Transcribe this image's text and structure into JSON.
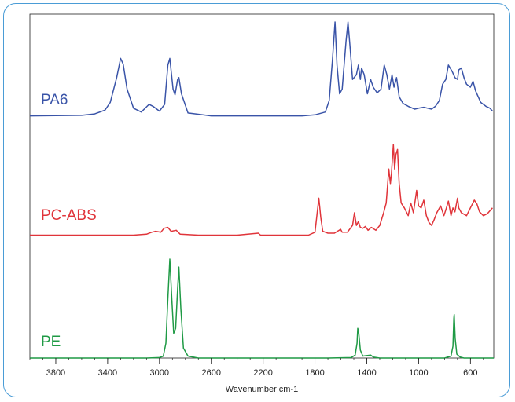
{
  "chart_data": {
    "type": "line",
    "xlabel": "Wavenumber cm-1",
    "ylabel": "",
    "xlim": [
      4000,
      420
    ],
    "x_reversed": true,
    "x_ticks": [
      3800,
      3400,
      3000,
      2600,
      2200,
      1800,
      1400,
      1000,
      600
    ],
    "y_ticks_shown": false,
    "grid": false,
    "legend": "none",
    "series": [
      {
        "name": "PA6",
        "color": "#3a54a8",
        "points": [
          [
            4000,
            0.02
          ],
          [
            3600,
            0.025
          ],
          [
            3500,
            0.04
          ],
          [
            3420,
            0.08
          ],
          [
            3380,
            0.16
          ],
          [
            3330,
            0.42
          ],
          [
            3300,
            0.62
          ],
          [
            3280,
            0.56
          ],
          [
            3250,
            0.3
          ],
          [
            3200,
            0.1
          ],
          [
            3140,
            0.06
          ],
          [
            3080,
            0.14
          ],
          [
            3050,
            0.12
          ],
          [
            3000,
            0.07
          ],
          [
            2960,
            0.14
          ],
          [
            2935,
            0.55
          ],
          [
            2920,
            0.62
          ],
          [
            2895,
            0.3
          ],
          [
            2880,
            0.24
          ],
          [
            2860,
            0.4
          ],
          [
            2850,
            0.42
          ],
          [
            2830,
            0.25
          ],
          [
            2780,
            0.05
          ],
          [
            2600,
            0.02
          ],
          [
            2200,
            0.02
          ],
          [
            1900,
            0.02
          ],
          [
            1800,
            0.03
          ],
          [
            1720,
            0.06
          ],
          [
            1690,
            0.18
          ],
          [
            1665,
            0.6
          ],
          [
            1645,
            1.0
          ],
          [
            1630,
            0.55
          ],
          [
            1610,
            0.25
          ],
          [
            1590,
            0.3
          ],
          [
            1560,
            0.8
          ],
          [
            1545,
            1.0
          ],
          [
            1530,
            0.75
          ],
          [
            1510,
            0.4
          ],
          [
            1480,
            0.45
          ],
          [
            1465,
            0.55
          ],
          [
            1450,
            0.4
          ],
          [
            1440,
            0.52
          ],
          [
            1420,
            0.45
          ],
          [
            1395,
            0.25
          ],
          [
            1370,
            0.4
          ],
          [
            1350,
            0.32
          ],
          [
            1320,
            0.26
          ],
          [
            1290,
            0.3
          ],
          [
            1265,
            0.55
          ],
          [
            1245,
            0.45
          ],
          [
            1225,
            0.3
          ],
          [
            1205,
            0.45
          ],
          [
            1190,
            0.32
          ],
          [
            1170,
            0.42
          ],
          [
            1150,
            0.22
          ],
          [
            1120,
            0.15
          ],
          [
            1080,
            0.12
          ],
          [
            1030,
            0.09
          ],
          [
            1000,
            0.1
          ],
          [
            960,
            0.11
          ],
          [
            930,
            0.1
          ],
          [
            900,
            0.09
          ],
          [
            870,
            0.12
          ],
          [
            840,
            0.18
          ],
          [
            815,
            0.35
          ],
          [
            790,
            0.4
          ],
          [
            770,
            0.55
          ],
          [
            740,
            0.48
          ],
          [
            720,
            0.42
          ],
          [
            700,
            0.4
          ],
          [
            690,
            0.5
          ],
          [
            670,
            0.52
          ],
          [
            650,
            0.42
          ],
          [
            630,
            0.35
          ],
          [
            600,
            0.32
          ],
          [
            580,
            0.38
          ],
          [
            560,
            0.28
          ],
          [
            520,
            0.16
          ],
          [
            480,
            0.12
          ],
          [
            450,
            0.1
          ],
          [
            430,
            0.07
          ]
        ]
      },
      {
        "name": "PC-ABS",
        "color": "#e0343a",
        "points": [
          [
            4000,
            0.02
          ],
          [
            3200,
            0.02
          ],
          [
            3100,
            0.03
          ],
          [
            3060,
            0.05
          ],
          [
            3030,
            0.06
          ],
          [
            2990,
            0.05
          ],
          [
            2965,
            0.09
          ],
          [
            2935,
            0.1
          ],
          [
            2910,
            0.06
          ],
          [
            2870,
            0.07
          ],
          [
            2840,
            0.03
          ],
          [
            2700,
            0.02
          ],
          [
            2400,
            0.02
          ],
          [
            2237,
            0.04
          ],
          [
            2220,
            0.02
          ],
          [
            2000,
            0.02
          ],
          [
            1850,
            0.02
          ],
          [
            1800,
            0.05
          ],
          [
            1785,
            0.22
          ],
          [
            1770,
            0.4
          ],
          [
            1755,
            0.2
          ],
          [
            1740,
            0.06
          ],
          [
            1700,
            0.04
          ],
          [
            1650,
            0.04
          ],
          [
            1602,
            0.08
          ],
          [
            1590,
            0.05
          ],
          [
            1550,
            0.05
          ],
          [
            1510,
            0.12
          ],
          [
            1495,
            0.25
          ],
          [
            1480,
            0.12
          ],
          [
            1465,
            0.16
          ],
          [
            1450,
            0.1
          ],
          [
            1430,
            0.09
          ],
          [
            1410,
            0.11
          ],
          [
            1390,
            0.07
          ],
          [
            1365,
            0.1
          ],
          [
            1330,
            0.07
          ],
          [
            1300,
            0.12
          ],
          [
            1270,
            0.25
          ],
          [
            1250,
            0.35
          ],
          [
            1230,
            0.7
          ],
          [
            1218,
            0.55
          ],
          [
            1210,
            0.65
          ],
          [
            1195,
            0.95
          ],
          [
            1185,
            0.7
          ],
          [
            1175,
            0.85
          ],
          [
            1163,
            0.9
          ],
          [
            1150,
            0.55
          ],
          [
            1135,
            0.35
          ],
          [
            1110,
            0.3
          ],
          [
            1080,
            0.22
          ],
          [
            1060,
            0.35
          ],
          [
            1040,
            0.25
          ],
          [
            1015,
            0.48
          ],
          [
            1000,
            0.32
          ],
          [
            980,
            0.3
          ],
          [
            960,
            0.38
          ],
          [
            940,
            0.22
          ],
          [
            920,
            0.15
          ],
          [
            900,
            0.12
          ],
          [
            880,
            0.18
          ],
          [
            860,
            0.25
          ],
          [
            830,
            0.32
          ],
          [
            805,
            0.22
          ],
          [
            790,
            0.28
          ],
          [
            770,
            0.37
          ],
          [
            750,
            0.22
          ],
          [
            735,
            0.3
          ],
          [
            720,
            0.26
          ],
          [
            700,
            0.4
          ],
          [
            690,
            0.3
          ],
          [
            670,
            0.25
          ],
          [
            630,
            0.22
          ],
          [
            600,
            0.3
          ],
          [
            570,
            0.38
          ],
          [
            550,
            0.34
          ],
          [
            530,
            0.26
          ],
          [
            500,
            0.22
          ],
          [
            470,
            0.24
          ],
          [
            430,
            0.3
          ]
        ]
      },
      {
        "name": "PE",
        "color": "#1f9a45",
        "points": [
          [
            4000,
            0.0
          ],
          [
            3100,
            0.0
          ],
          [
            3000,
            0.005
          ],
          [
            2970,
            0.02
          ],
          [
            2950,
            0.15
          ],
          [
            2935,
            0.6
          ],
          [
            2920,
            1.0
          ],
          [
            2905,
            0.6
          ],
          [
            2890,
            0.25
          ],
          [
            2875,
            0.3
          ],
          [
            2860,
            0.7
          ],
          [
            2850,
            0.92
          ],
          [
            2835,
            0.5
          ],
          [
            2815,
            0.1
          ],
          [
            2780,
            0.02
          ],
          [
            2700,
            0.0
          ],
          [
            1700,
            0.0
          ],
          [
            1520,
            0.005
          ],
          [
            1490,
            0.03
          ],
          [
            1475,
            0.15
          ],
          [
            1470,
            0.3
          ],
          [
            1462,
            0.25
          ],
          [
            1450,
            0.08
          ],
          [
            1430,
            0.02
          ],
          [
            1370,
            0.03
          ],
          [
            1350,
            0.01
          ],
          [
            1300,
            0.0
          ],
          [
            800,
            0.0
          ],
          [
            750,
            0.02
          ],
          [
            735,
            0.12
          ],
          [
            728,
            0.4
          ],
          [
            725,
            0.44
          ],
          [
            718,
            0.2
          ],
          [
            705,
            0.04
          ],
          [
            680,
            0.01
          ],
          [
            650,
            0.0
          ],
          [
            420,
            0.0
          ]
        ]
      }
    ]
  }
}
